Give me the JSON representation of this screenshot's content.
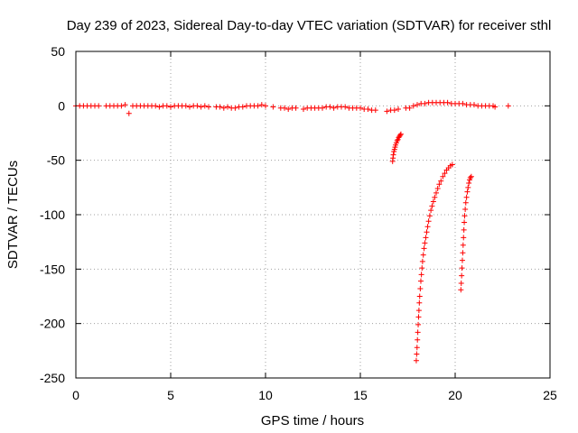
{
  "chart_data": {
    "type": "scatter",
    "title": "Day 239 of 2023, Sidereal Day-to-day VTEC variation (SDTVAR) for receiver sthl",
    "xlabel": "GPS time / hours",
    "ylabel": "SDTVAR / TECUs",
    "xlim": [
      0,
      25
    ],
    "ylim": [
      -250,
      50
    ],
    "xticks": [
      0,
      5,
      10,
      15,
      20,
      25
    ],
    "yticks": [
      50,
      0,
      -50,
      -100,
      -150,
      -200,
      -250
    ],
    "grid": true,
    "marker": "+",
    "marker_color": "#ff0000",
    "series": [
      {
        "values_description_free": true,
        "points": [
          [
            0.0,
            0
          ],
          [
            0.2,
            0
          ],
          [
            0.4,
            0
          ],
          [
            0.6,
            0
          ],
          [
            0.8,
            0
          ],
          [
            1.0,
            0
          ],
          [
            1.2,
            0
          ],
          [
            1.6,
            0
          ],
          [
            1.8,
            0
          ],
          [
            2.0,
            0
          ],
          [
            2.2,
            0
          ],
          [
            2.4,
            0
          ],
          [
            2.6,
            1
          ],
          [
            2.8,
            -7
          ],
          [
            3.0,
            0
          ],
          [
            3.2,
            0
          ],
          [
            3.4,
            0
          ],
          [
            3.6,
            0
          ],
          [
            3.8,
            0
          ],
          [
            4.0,
            0
          ],
          [
            4.2,
            0
          ],
          [
            4.4,
            -1
          ],
          [
            4.6,
            0
          ],
          [
            4.8,
            0
          ],
          [
            5.0,
            -1
          ],
          [
            5.2,
            0
          ],
          [
            5.4,
            0
          ],
          [
            5.6,
            0
          ],
          [
            5.8,
            0
          ],
          [
            6.0,
            -1
          ],
          [
            6.2,
            0
          ],
          [
            6.4,
            0
          ],
          [
            6.6,
            -1
          ],
          [
            6.8,
            0
          ],
          [
            7.0,
            -1
          ],
          [
            7.4,
            -1
          ],
          [
            7.6,
            -1
          ],
          [
            7.8,
            -2
          ],
          [
            8.0,
            -1
          ],
          [
            8.2,
            -2
          ],
          [
            8.4,
            -2
          ],
          [
            8.6,
            -1
          ],
          [
            8.8,
            -1
          ],
          [
            9.0,
            0
          ],
          [
            9.2,
            0
          ],
          [
            9.4,
            0
          ],
          [
            9.6,
            0
          ],
          [
            9.8,
            1
          ],
          [
            10.0,
            0
          ],
          [
            10.4,
            -1
          ],
          [
            10.8,
            -2
          ],
          [
            11.0,
            -2
          ],
          [
            11.2,
            -3
          ],
          [
            11.4,
            -2
          ],
          [
            11.6,
            -2
          ],
          [
            12.0,
            -3
          ],
          [
            12.2,
            -2
          ],
          [
            12.4,
            -2
          ],
          [
            12.6,
            -2
          ],
          [
            12.8,
            -2
          ],
          [
            13.0,
            -2
          ],
          [
            13.2,
            -1
          ],
          [
            13.4,
            -1
          ],
          [
            13.6,
            -2
          ],
          [
            13.8,
            -1
          ],
          [
            14.0,
            -1
          ],
          [
            14.2,
            -1
          ],
          [
            14.4,
            -2
          ],
          [
            14.6,
            -2
          ],
          [
            14.8,
            -2
          ],
          [
            15.0,
            -2
          ],
          [
            15.2,
            -3
          ],
          [
            15.4,
            -3
          ],
          [
            15.6,
            -4
          ],
          [
            15.8,
            -4
          ],
          [
            16.4,
            -5
          ],
          [
            16.6,
            -4
          ],
          [
            16.8,
            -4
          ],
          [
            17.0,
            -3
          ],
          [
            17.4,
            -2
          ],
          [
            17.6,
            -2
          ],
          [
            17.8,
            0
          ],
          [
            18.0,
            1
          ],
          [
            18.2,
            2
          ],
          [
            18.4,
            2
          ],
          [
            18.6,
            3
          ],
          [
            18.8,
            3
          ],
          [
            19.0,
            3
          ],
          [
            19.2,
            3
          ],
          [
            19.4,
            3
          ],
          [
            19.6,
            3
          ],
          [
            19.8,
            2
          ],
          [
            20.0,
            2
          ],
          [
            20.2,
            2
          ],
          [
            20.4,
            2
          ],
          [
            20.6,
            1
          ],
          [
            20.8,
            1
          ],
          [
            21.0,
            1
          ],
          [
            21.2,
            0
          ],
          [
            21.4,
            0
          ],
          [
            21.6,
            0
          ],
          [
            21.8,
            0
          ],
          [
            22.0,
            0
          ],
          [
            22.1,
            -1
          ],
          [
            22.8,
            0
          ],
          [
            16.7,
            -51
          ],
          [
            16.72,
            -48
          ],
          [
            16.74,
            -45
          ],
          [
            16.77,
            -42
          ],
          [
            16.8,
            -40
          ],
          [
            16.83,
            -38
          ],
          [
            16.86,
            -36
          ],
          [
            16.9,
            -34
          ],
          [
            16.94,
            -32
          ],
          [
            16.98,
            -31
          ],
          [
            17.02,
            -29
          ],
          [
            17.06,
            -28
          ],
          [
            17.1,
            -27
          ],
          [
            17.14,
            -26
          ],
          [
            17.95,
            -234
          ],
          [
            17.97,
            -228
          ],
          [
            17.99,
            -222
          ],
          [
            18.01,
            -215
          ],
          [
            18.03,
            -208
          ],
          [
            18.05,
            -201
          ],
          [
            18.07,
            -194
          ],
          [
            18.09,
            -188
          ],
          [
            18.11,
            -181
          ],
          [
            18.13,
            -175
          ],
          [
            18.16,
            -168
          ],
          [
            18.19,
            -161
          ],
          [
            18.22,
            -155
          ],
          [
            18.25,
            -149
          ],
          [
            18.28,
            -143
          ],
          [
            18.32,
            -137
          ],
          [
            18.36,
            -131
          ],
          [
            18.4,
            -126
          ],
          [
            18.45,
            -121
          ],
          [
            18.5,
            -116
          ],
          [
            18.55,
            -111
          ],
          [
            18.6,
            -106
          ],
          [
            18.66,
            -101
          ],
          [
            18.72,
            -96
          ],
          [
            18.78,
            -92
          ],
          [
            18.85,
            -88
          ],
          [
            18.92,
            -84
          ],
          [
            19.0,
            -80
          ],
          [
            19.08,
            -76
          ],
          [
            19.16,
            -72
          ],
          [
            19.25,
            -69
          ],
          [
            19.35,
            -65
          ],
          [
            19.45,
            -62
          ],
          [
            19.55,
            -59
          ],
          [
            19.65,
            -57
          ],
          [
            19.75,
            -55
          ],
          [
            19.85,
            -54
          ],
          [
            20.3,
            -169
          ],
          [
            20.32,
            -163
          ],
          [
            20.34,
            -156
          ],
          [
            20.36,
            -149
          ],
          [
            20.38,
            -142
          ],
          [
            20.4,
            -135
          ],
          [
            20.42,
            -128
          ],
          [
            20.44,
            -121
          ],
          [
            20.46,
            -114
          ],
          [
            20.48,
            -107
          ],
          [
            20.5,
            -101
          ],
          [
            20.53,
            -95
          ],
          [
            20.56,
            -89
          ],
          [
            20.6,
            -84
          ],
          [
            20.64,
            -79
          ],
          [
            20.68,
            -75
          ],
          [
            20.72,
            -71
          ],
          [
            20.76,
            -68
          ],
          [
            20.8,
            -66
          ],
          [
            20.85,
            -65
          ]
        ]
      }
    ]
  }
}
